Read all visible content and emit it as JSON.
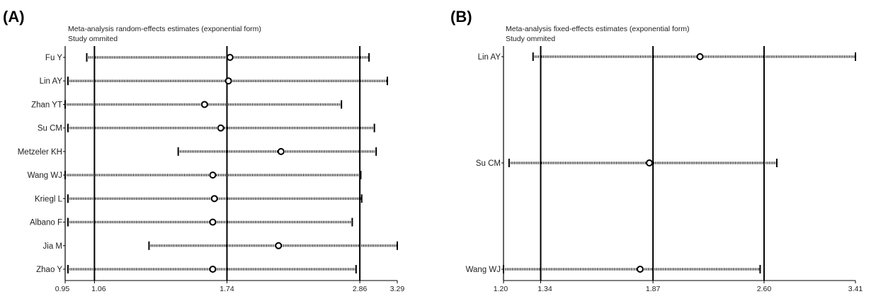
{
  "chart_data": [
    {
      "type": "forest",
      "panel_label": "(A)",
      "title": "Meta-analysis random-effects estimates (exponential form)",
      "subtitle": "Study ommited",
      "xticks": [
        "0.95",
        "1.06",
        "1.74",
        "2.86",
        "3.29"
      ],
      "xtick_values": [
        0.95,
        1.06,
        1.74,
        2.86,
        3.29
      ],
      "x_scale": "log",
      "xlim": [
        0.95,
        3.29
      ],
      "reference_lines": [
        1.06,
        1.74,
        2.86
      ],
      "studies": [
        {
          "name": "Fu Y",
          "estimate": 1.76,
          "lower": 1.03,
          "upper": 2.96
        },
        {
          "name": "Lin AY",
          "estimate": 1.75,
          "lower": 0.96,
          "upper": 3.17
        },
        {
          "name": "Zhan YT",
          "estimate": 1.6,
          "lower": 0.95,
          "upper": 2.67
        },
        {
          "name": "Su CM",
          "estimate": 1.7,
          "lower": 0.96,
          "upper": 3.02
        },
        {
          "name": "Metzeler KH",
          "estimate": 2.13,
          "lower": 1.45,
          "upper": 3.04
        },
        {
          "name": "Wang WJ",
          "estimate": 1.65,
          "lower": 0.95,
          "upper": 2.87
        },
        {
          "name": "Kriegl L",
          "estimate": 1.66,
          "lower": 0.96,
          "upper": 2.88
        },
        {
          "name": "Albano F",
          "estimate": 1.65,
          "lower": 0.96,
          "upper": 2.78
        },
        {
          "name": "Jia M",
          "estimate": 2.11,
          "lower": 1.3,
          "upper": 3.29
        },
        {
          "name": "Zhao Y",
          "estimate": 1.65,
          "lower": 0.96,
          "upper": 2.82
        }
      ]
    },
    {
      "type": "forest",
      "panel_label": "(B)",
      "title": "Meta-analysis fixed-effects estimates (exponential form)",
      "subtitle": "Study ommited",
      "xticks": [
        "1.20",
        "1.34",
        "1.87",
        "2.60",
        "3.41"
      ],
      "xtick_values": [
        1.2,
        1.34,
        1.87,
        2.6,
        3.41
      ],
      "x_scale": "log",
      "xlim": [
        1.2,
        3.41
      ],
      "reference_lines": [
        1.34,
        1.87,
        2.6
      ],
      "studies": [
        {
          "name": "Lin AY",
          "estimate": 2.15,
          "lower": 1.31,
          "upper": 3.41
        },
        {
          "name": "Su CM",
          "estimate": 1.85,
          "lower": 1.22,
          "upper": 2.7
        },
        {
          "name": "Wang WJ",
          "estimate": 1.8,
          "lower": 1.2,
          "upper": 2.57
        }
      ]
    }
  ]
}
